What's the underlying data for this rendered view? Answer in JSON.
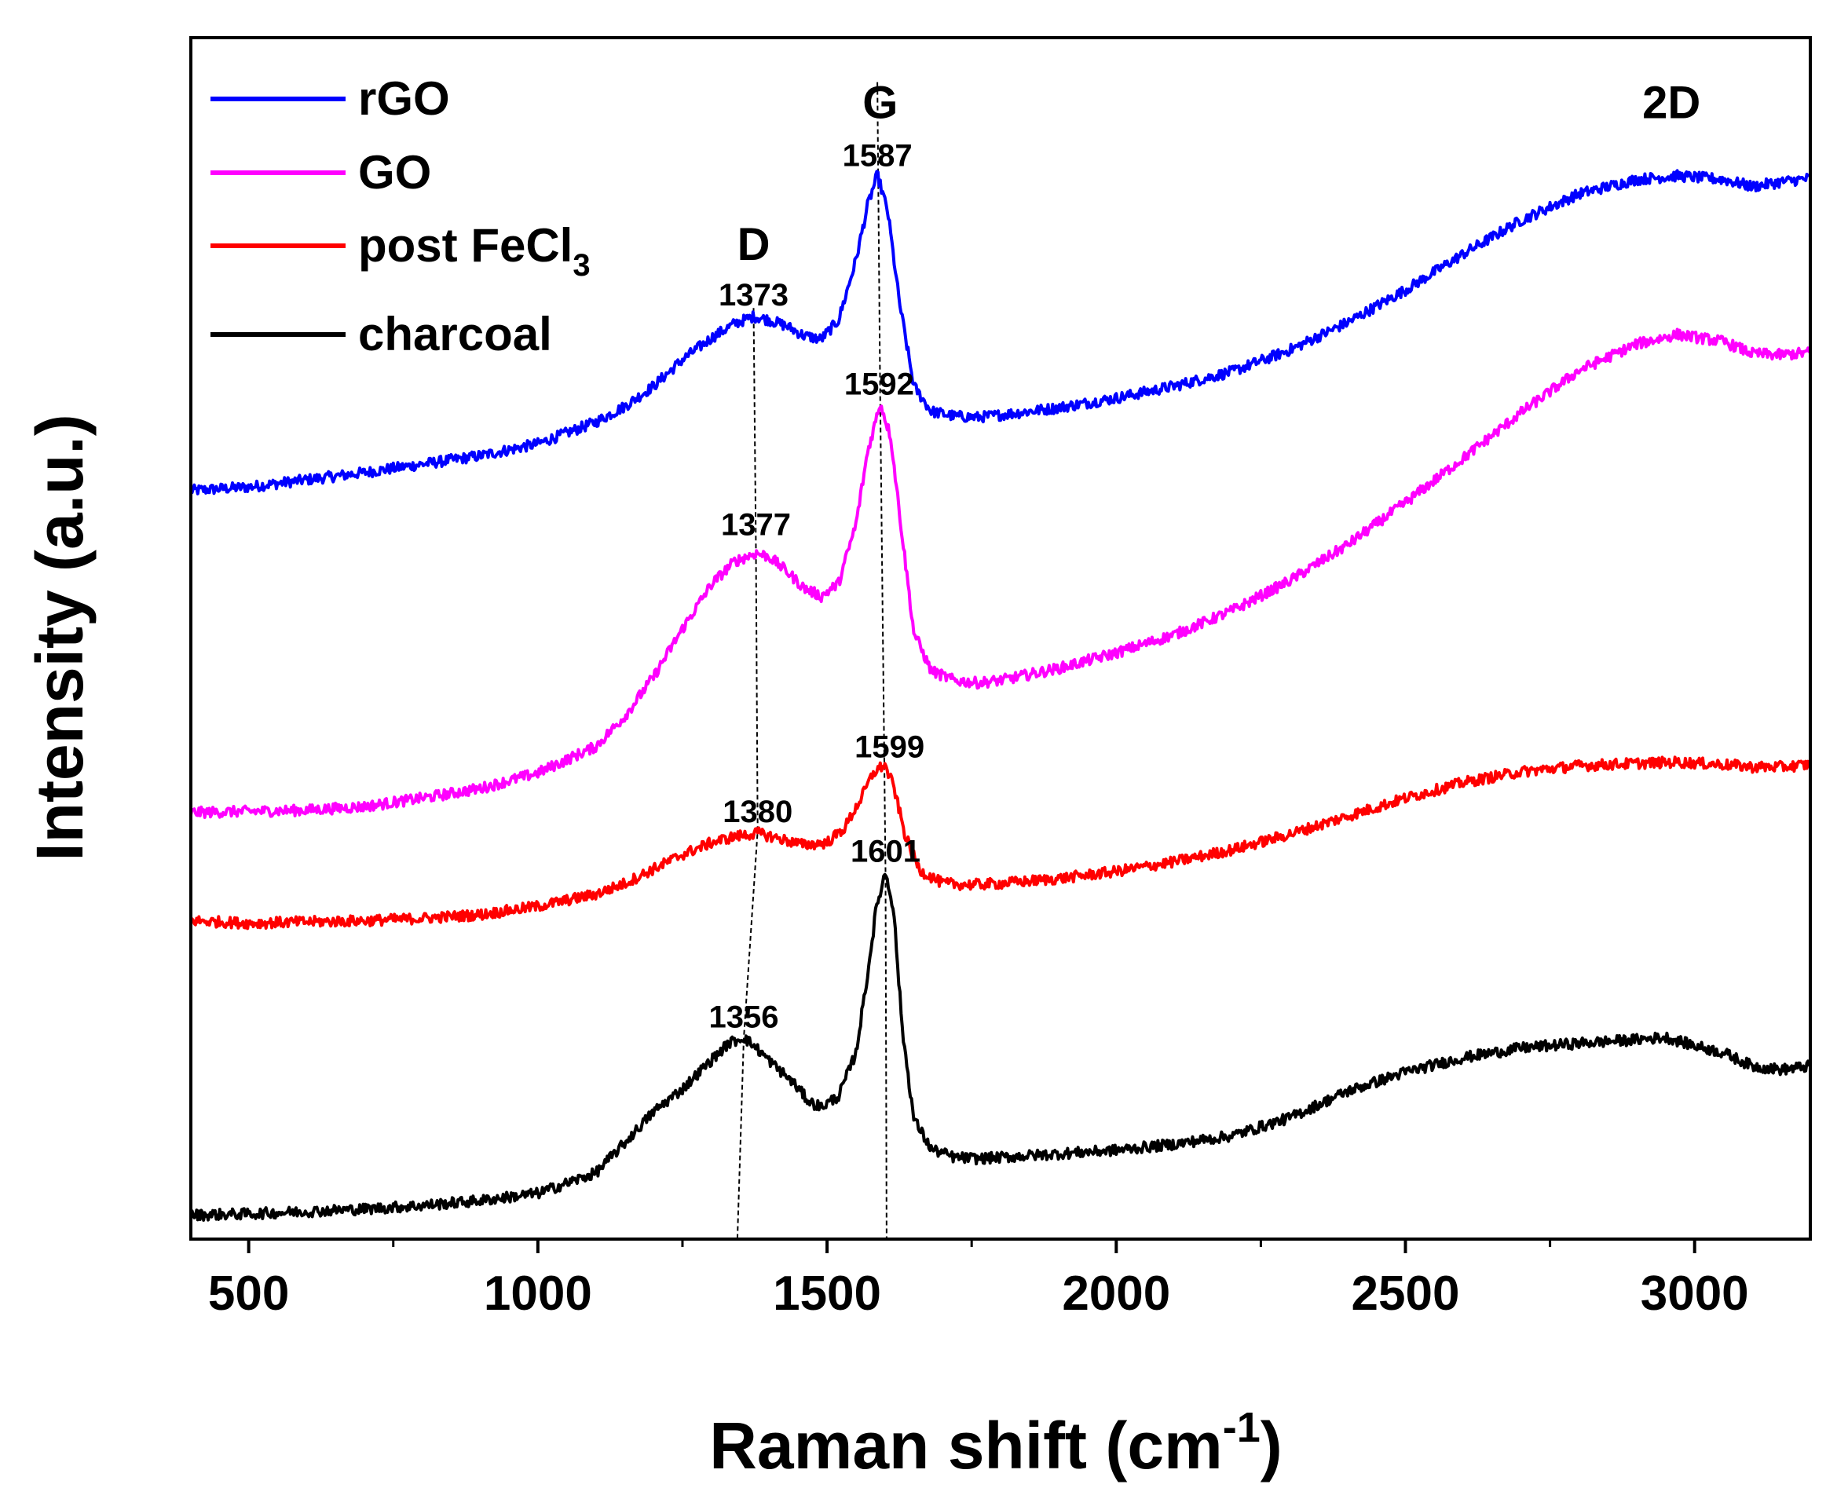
{
  "chart_data": {
    "type": "line",
    "xlabel": "Raman shift (cm",
    "xlabel_sup": "-1",
    "xlabel_end": ")",
    "ylabel": "Intensity (a.u.)",
    "xlim": [
      400,
      3200
    ],
    "ylim": [
      0,
      100
    ],
    "x_ticks": [
      500,
      1000,
      1500,
      2000,
      2500,
      3000
    ],
    "x_minor_ticks": [
      750,
      1250,
      1750,
      2250,
      2750
    ],
    "y_ticks": [],
    "grid": false,
    "legend_position": "top-left",
    "series": [
      {
        "name": "rGO",
        "color": "#0000ff",
        "x": [
          400,
          500,
          600,
          700,
          800,
          900,
          1000,
          1100,
          1150,
          1200,
          1250,
          1300,
          1340,
          1373,
          1400,
          1430,
          1460,
          1490,
          1520,
          1550,
          1570,
          1587,
          1605,
          1625,
          1650,
          1680,
          1720,
          1760,
          1800,
          1900,
          2000,
          2100,
          2200,
          2300,
          2400,
          2500,
          2600,
          2700,
          2800,
          2900,
          2970,
          3050,
          3100,
          3150,
          3200
        ],
        "y": [
          62.3,
          62.6,
          63.2,
          63.8,
          64.5,
          65.2,
          66.2,
          68.0,
          69.3,
          71.0,
          73.2,
          75.0,
          76.2,
          76.8,
          76.5,
          76.0,
          75.2,
          74.9,
          76.5,
          81.5,
          86.0,
          88.6,
          85.5,
          78.0,
          71.0,
          68.9,
          68.5,
          68.4,
          68.6,
          69.2,
          70.0,
          71.0,
          72.2,
          74.0,
          76.3,
          79.0,
          82.0,
          84.8,
          87.0,
          88.2,
          88.5,
          88.2,
          87.6,
          88.0,
          88.3
        ]
      },
      {
        "name": "GO",
        "color": "#ff00ff",
        "x": [
          400,
          500,
          600,
          700,
          800,
          900,
          1000,
          1100,
          1150,
          1200,
          1250,
          1300,
          1340,
          1377,
          1400,
          1430,
          1460,
          1490,
          1520,
          1550,
          1570,
          1592,
          1610,
          1630,
          1650,
          1680,
          1720,
          1760,
          1800,
          1900,
          2000,
          2100,
          2200,
          2300,
          2400,
          2500,
          2600,
          2700,
          2800,
          2900,
          2970,
          3050,
          3100,
          3150,
          3200
        ],
        "y": [
          35.5,
          35.6,
          35.7,
          36.0,
          36.7,
          37.5,
          38.8,
          41.0,
          43.5,
          46.8,
          50.8,
          54.5,
          56.4,
          57.1,
          56.8,
          55.6,
          54.2,
          53.5,
          54.6,
          59.5,
          65.5,
          69.6,
          66.8,
          58.5,
          50.5,
          47.3,
          46.5,
          46.3,
          46.5,
          47.5,
          48.8,
          50.3,
          52.3,
          54.8,
          57.8,
          61.3,
          65.0,
          68.8,
          72.3,
          74.5,
          75.3,
          74.7,
          73.7,
          73.6,
          73.8
        ]
      },
      {
        "name": "post FeCl3",
        "color": "#ff0000",
        "x": [
          400,
          500,
          600,
          700,
          800,
          900,
          1000,
          1100,
          1150,
          1200,
          1250,
          1300,
          1340,
          1380,
          1420,
          1460,
          1500,
          1530,
          1560,
          1580,
          1599,
          1615,
          1635,
          1660,
          1700,
          1750,
          1800,
          1900,
          2000,
          2100,
          2200,
          2300,
          2400,
          2500,
          2600,
          2700,
          2800,
          2900,
          2970,
          3050,
          3100,
          3150,
          3200
        ],
        "y": [
          26.5,
          26.3,
          26.4,
          26.5,
          26.7,
          27.0,
          27.7,
          28.7,
          29.6,
          30.8,
          32.0,
          33.0,
          33.5,
          33.8,
          33.3,
          32.8,
          33.0,
          34.2,
          36.8,
          38.8,
          39.5,
          37.7,
          33.6,
          30.7,
          29.6,
          29.5,
          29.6,
          30.0,
          30.6,
          31.4,
          32.4,
          33.7,
          35.2,
          36.7,
          38.0,
          38.9,
          39.4,
          39.6,
          39.7,
          39.5,
          39.3,
          39.3,
          39.5
        ]
      },
      {
        "name": "charcoal",
        "color": "#000000",
        "x": [
          400,
          500,
          600,
          700,
          800,
          900,
          1000,
          1100,
          1150,
          1200,
          1250,
          1300,
          1330,
          1356,
          1380,
          1410,
          1440,
          1470,
          1490,
          1520,
          1550,
          1570,
          1585,
          1601,
          1615,
          1630,
          1650,
          1680,
          1720,
          1760,
          1800,
          1900,
          2000,
          2100,
          2200,
          2300,
          2400,
          2500,
          2600,
          2700,
          2800,
          2900,
          2950,
          3000,
          3050,
          3100,
          3150,
          3200
        ],
        "y": [
          2.0,
          2.1,
          2.3,
          2.5,
          2.8,
          3.2,
          3.8,
          5.5,
          8.0,
          10.6,
          12.5,
          14.9,
          16.3,
          16.8,
          15.8,
          14.4,
          13.1,
          11.4,
          11.0,
          11.9,
          15.5,
          22.0,
          27.5,
          30.6,
          27.5,
          17.5,
          10.0,
          7.5,
          6.8,
          6.7,
          6.8,
          7.1,
          7.4,
          7.9,
          8.6,
          10.1,
          12.3,
          13.9,
          15.1,
          15.9,
          16.3,
          16.6,
          16.8,
          16.1,
          15.5,
          14.4,
          14.1,
          14.4
        ]
      }
    ],
    "legend_entries": [
      {
        "label": "rGO",
        "color": "#0000ff"
      },
      {
        "label": "GO",
        "color": "#ff00ff"
      },
      {
        "label": "post FeCl",
        "sub": "3",
        "color": "#ff0000"
      },
      {
        "label": "charcoal",
        "color": "#000000"
      }
    ],
    "band_labels": [
      {
        "text": "D",
        "x": 1373,
        "y": 81.5
      },
      {
        "text": "G",
        "x": 1592,
        "y": 93.3
      },
      {
        "text": "2D",
        "x": 2960,
        "y": 93.3
      }
    ],
    "peak_annotations": [
      {
        "text": "1587",
        "x": 1587,
        "y": 89.3
      },
      {
        "text": "1373",
        "x": 1373,
        "y": 77.7
      },
      {
        "text": "1592",
        "x": 1590,
        "y": 70.3
      },
      {
        "text": "1377",
        "x": 1377,
        "y": 58.6
      },
      {
        "text": "1599",
        "x": 1608,
        "y": 40.1
      },
      {
        "text": "1380",
        "x": 1380,
        "y": 34.7
      },
      {
        "text": "1601",
        "x": 1601,
        "y": 31.4
      },
      {
        "text": "1356",
        "x": 1356,
        "y": 17.6
      }
    ],
    "guide_lines": [
      {
        "band": "D",
        "points": [
          [
            1373,
            77.5
          ],
          [
            1377,
            57.5
          ],
          [
            1380,
            34.0
          ],
          [
            1356,
            16.7
          ],
          [
            1345,
            0
          ]
        ]
      },
      {
        "band": "G",
        "points": [
          [
            1587,
            96.3
          ],
          [
            1592,
            69.6
          ],
          [
            1599,
            39.5
          ],
          [
            1601,
            30.6
          ],
          [
            1603,
            0
          ]
        ]
      }
    ]
  }
}
